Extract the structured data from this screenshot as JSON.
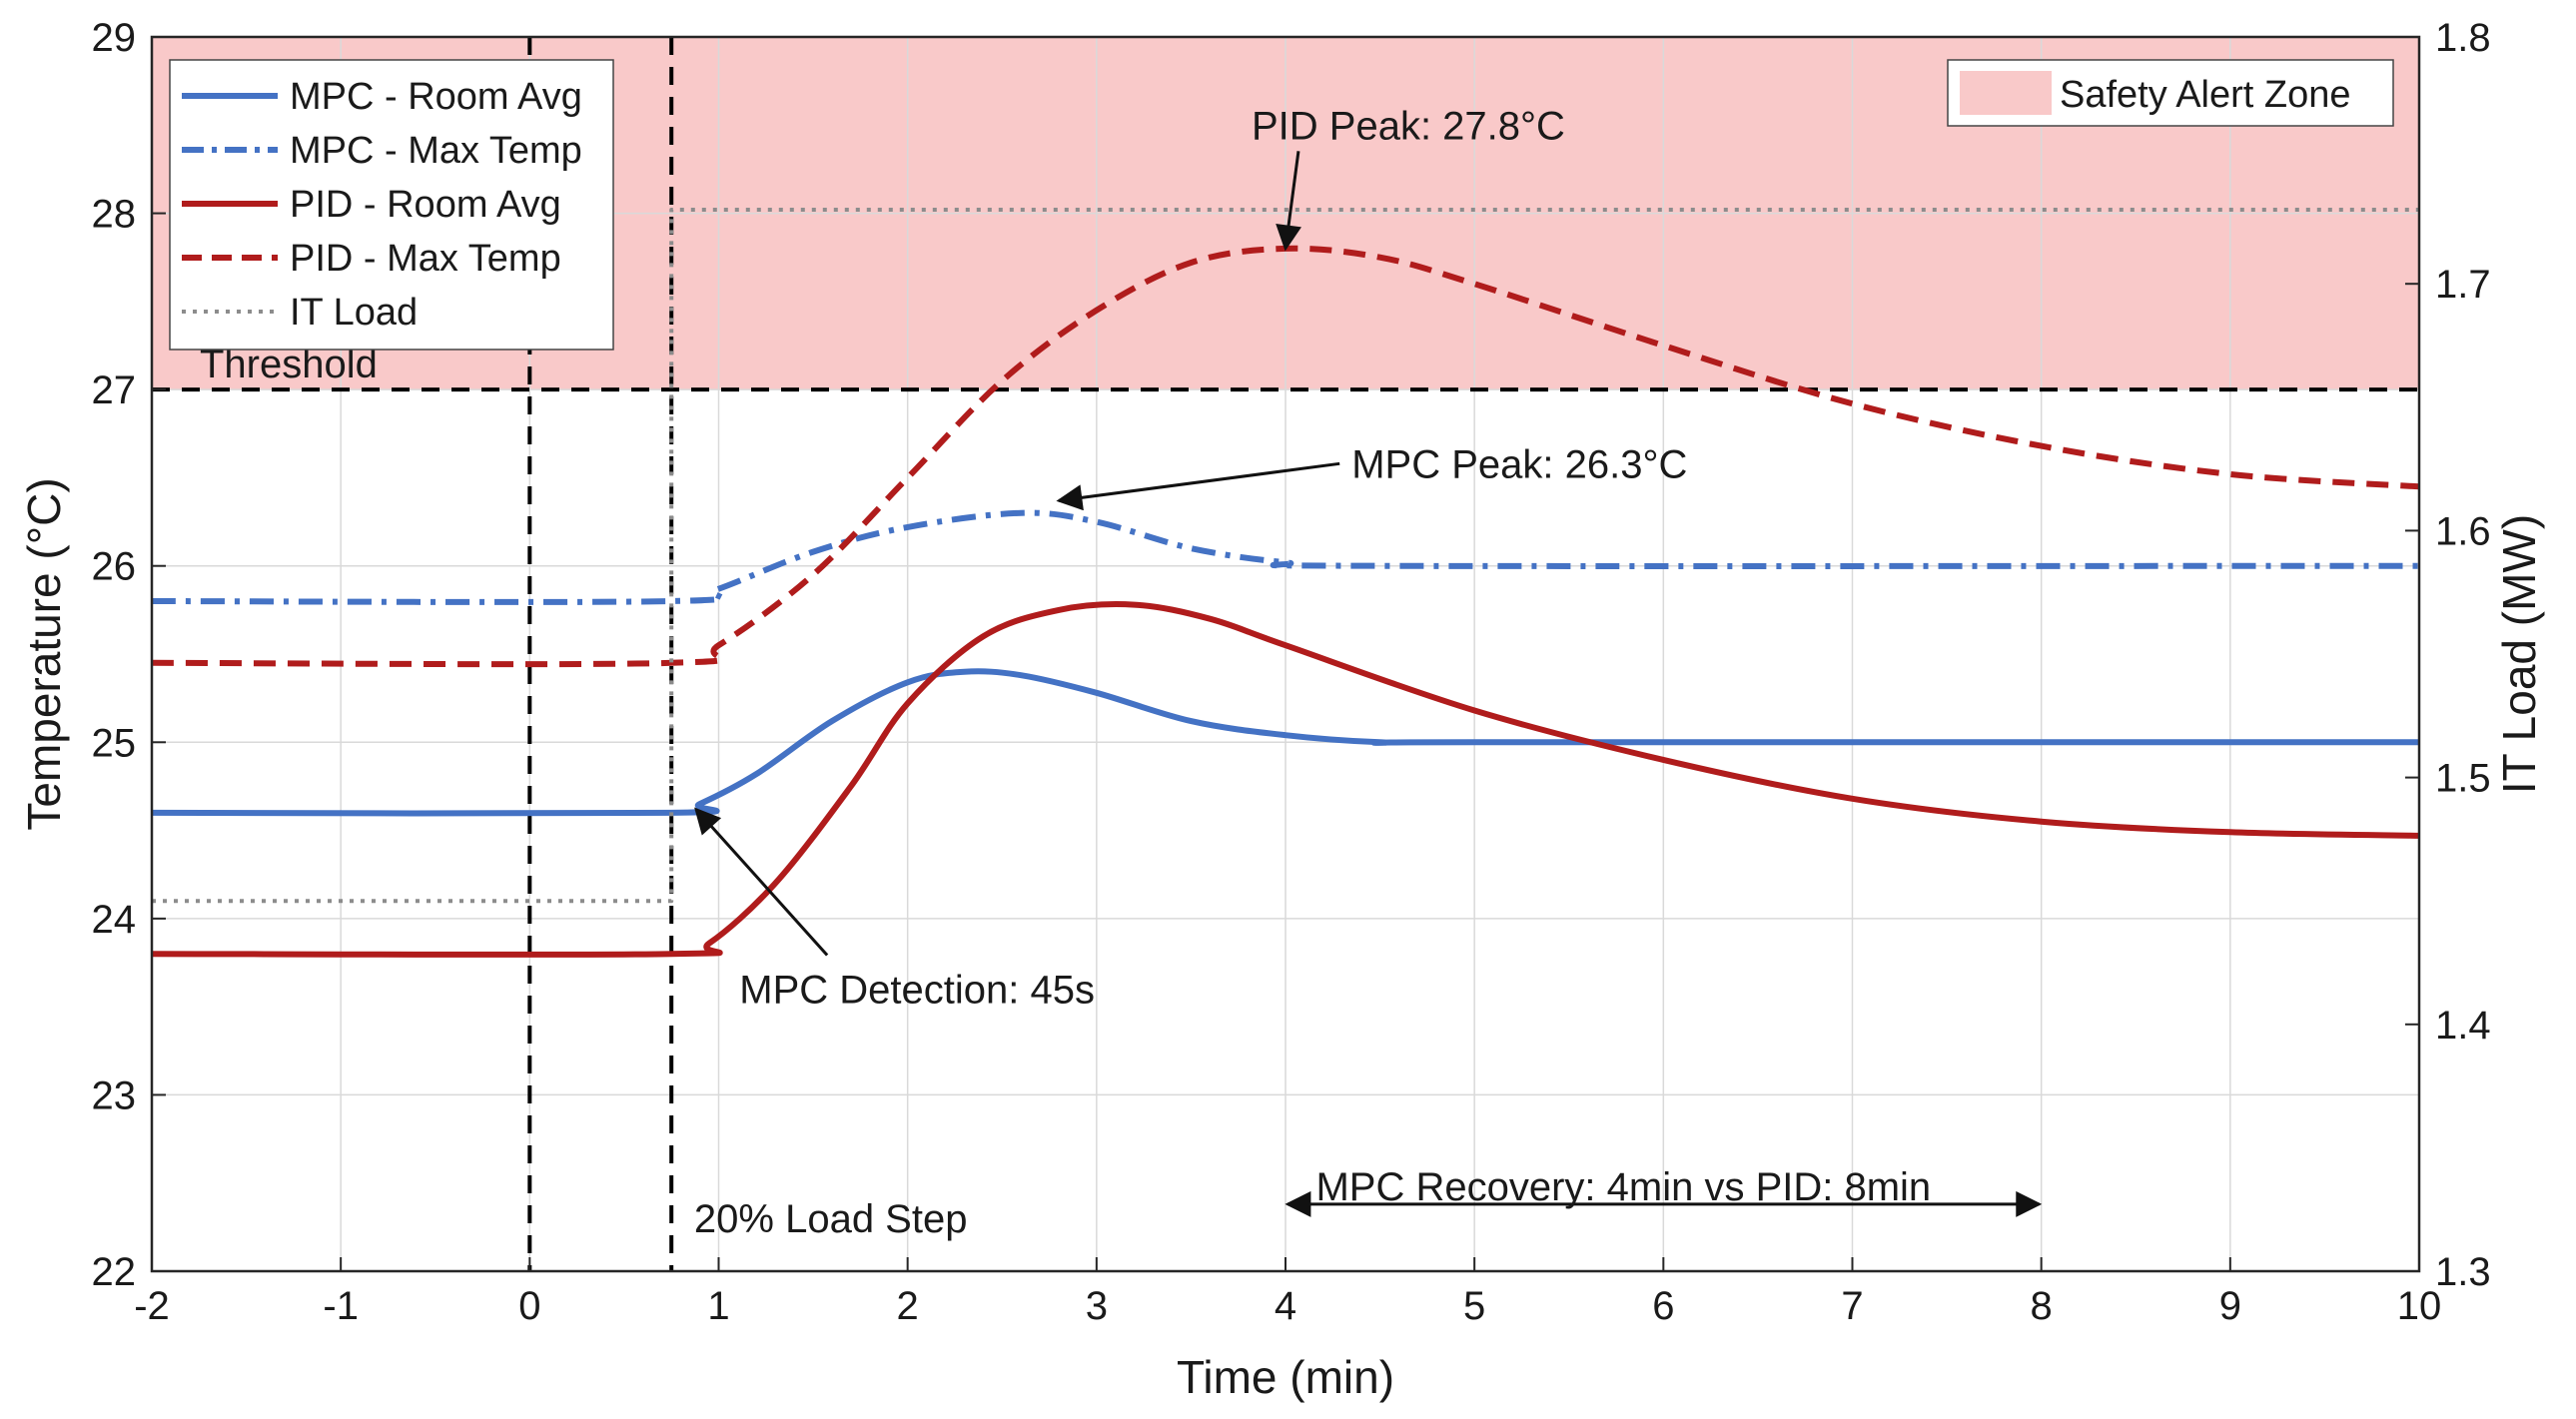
{
  "chart_data": {
    "type": "line",
    "title": "",
    "xlabel": "Time (min)",
    "ylabel": "Temperature (°C)",
    "y2label": "IT Load (MW)",
    "xlim": [
      -2,
      10
    ],
    "ylim": [
      22,
      29
    ],
    "y2lim": [
      1.3,
      1.8
    ],
    "xticks": [
      -2,
      -1,
      0,
      1,
      2,
      3,
      4,
      5,
      6,
      7,
      8,
      9,
      10
    ],
    "xtick_labels": [
      "-2",
      "-1",
      "0",
      "1",
      "2",
      "3",
      "4",
      "5",
      "6",
      "7",
      "8",
      "9",
      "10"
    ],
    "yticks": [
      22,
      23,
      24,
      25,
      26,
      27,
      28,
      29
    ],
    "ytick_labels": [
      "22",
      "23",
      "24",
      "25",
      "26",
      "27",
      "28",
      "29"
    ],
    "y2ticks": [
      1.3,
      1.4,
      1.5,
      1.6,
      1.7,
      1.8
    ],
    "y2tick_labels": [
      "1.3",
      "1.4",
      "1.5",
      "1.6",
      "1.7",
      "1.8"
    ],
    "grid": true,
    "legend_position": "top-left",
    "safety_zone": {
      "label": "Safety Alert Zone",
      "from": 27,
      "to": 29,
      "color": "#f9c9c9"
    },
    "threshold": {
      "label": "Threshold",
      "value": 27
    },
    "event_lines": [
      {
        "name": "time-zero",
        "x": 0
      },
      {
        "name": "load-step",
        "x": 0.75
      }
    ],
    "series": [
      {
        "name": "MPC - Room Avg",
        "axis": "left",
        "style": "solid",
        "color": "#4472c4",
        "points": [
          [
            -2,
            24.6
          ],
          [
            0.75,
            24.6
          ],
          [
            0.9,
            24.65
          ],
          [
            1.2,
            24.82
          ],
          [
            1.6,
            25.12
          ],
          [
            2.0,
            25.34
          ],
          [
            2.3,
            25.4
          ],
          [
            2.6,
            25.38
          ],
          [
            3.0,
            25.28
          ],
          [
            3.5,
            25.12
          ],
          [
            4.0,
            25.04
          ],
          [
            4.5,
            25.0
          ],
          [
            5.0,
            25.0
          ],
          [
            10.0,
            25.0
          ]
        ]
      },
      {
        "name": "MPC - Max Temp",
        "axis": "left",
        "style": "dash-dot",
        "color": "#4472c4",
        "points": [
          [
            -2,
            25.8
          ],
          [
            0.75,
            25.8
          ],
          [
            1.0,
            25.87
          ],
          [
            1.5,
            26.08
          ],
          [
            2.0,
            26.22
          ],
          [
            2.6,
            26.3
          ],
          [
            3.0,
            26.25
          ],
          [
            3.5,
            26.1
          ],
          [
            4.0,
            26.02
          ],
          [
            4.5,
            26.0
          ],
          [
            10.0,
            26.0
          ]
        ]
      },
      {
        "name": "PID - Room Avg",
        "axis": "left",
        "style": "solid",
        "color": "#b01c1c",
        "points": [
          [
            -2,
            23.8
          ],
          [
            0.75,
            23.8
          ],
          [
            0.95,
            23.86
          ],
          [
            1.3,
            24.2
          ],
          [
            1.7,
            24.75
          ],
          [
            2.0,
            25.22
          ],
          [
            2.4,
            25.6
          ],
          [
            2.8,
            25.75
          ],
          [
            3.2,
            25.78
          ],
          [
            3.6,
            25.7
          ],
          [
            4.0,
            25.55
          ],
          [
            5.0,
            25.18
          ],
          [
            6.0,
            24.9
          ],
          [
            7.0,
            24.68
          ],
          [
            8.0,
            24.55
          ],
          [
            9.0,
            24.49
          ],
          [
            10.0,
            24.47
          ]
        ]
      },
      {
        "name": "PID - Max Temp",
        "axis": "left",
        "style": "dashed",
        "color": "#b01c1c",
        "points": [
          [
            -2,
            25.45
          ],
          [
            0.75,
            25.45
          ],
          [
            1.0,
            25.55
          ],
          [
            1.5,
            25.95
          ],
          [
            2.0,
            26.5
          ],
          [
            2.5,
            27.05
          ],
          [
            3.0,
            27.45
          ],
          [
            3.5,
            27.72
          ],
          [
            4.0,
            27.8
          ],
          [
            4.5,
            27.75
          ],
          [
            5.0,
            27.6
          ],
          [
            6.0,
            27.25
          ],
          [
            7.0,
            26.92
          ],
          [
            8.0,
            26.68
          ],
          [
            9.0,
            26.52
          ],
          [
            10.0,
            26.45
          ]
        ]
      },
      {
        "name": "IT Load",
        "axis": "right",
        "style": "dotted",
        "color": "#8c8c8c",
        "points": [
          [
            -2,
            1.45
          ],
          [
            0.75,
            1.45
          ],
          [
            0.75,
            1.73
          ],
          [
            10.0,
            1.73
          ]
        ]
      }
    ],
    "annotations": [
      {
        "name": "pid-peak",
        "text": "PID Peak: 27.8°C",
        "point": [
          4.0,
          27.8
        ],
        "text_at": [
          4.65,
          28.5
        ],
        "anchor": "middle"
      },
      {
        "name": "mpc-peak",
        "text": "MPC Peak: 26.3°C",
        "point": [
          2.8,
          26.37
        ],
        "text_at": [
          4.35,
          26.58
        ],
        "anchor": "start"
      },
      {
        "name": "mpc-detection",
        "text": "MPC Detection: 45s",
        "point": [
          0.88,
          24.62
        ],
        "text_at": [
          2.05,
          23.6
        ],
        "anchor": "middle"
      },
      {
        "name": "load-step",
        "text": "20% Load Step",
        "point": null,
        "text_at": [
          0.87,
          22.3
        ],
        "anchor": "start"
      }
    ],
    "recovery_arrow": {
      "text": "MPC Recovery: 4min vs PID: 8min",
      "from": 4.0,
      "to": 8.0,
      "y": 22.38,
      "text_y": 22.48
    }
  }
}
